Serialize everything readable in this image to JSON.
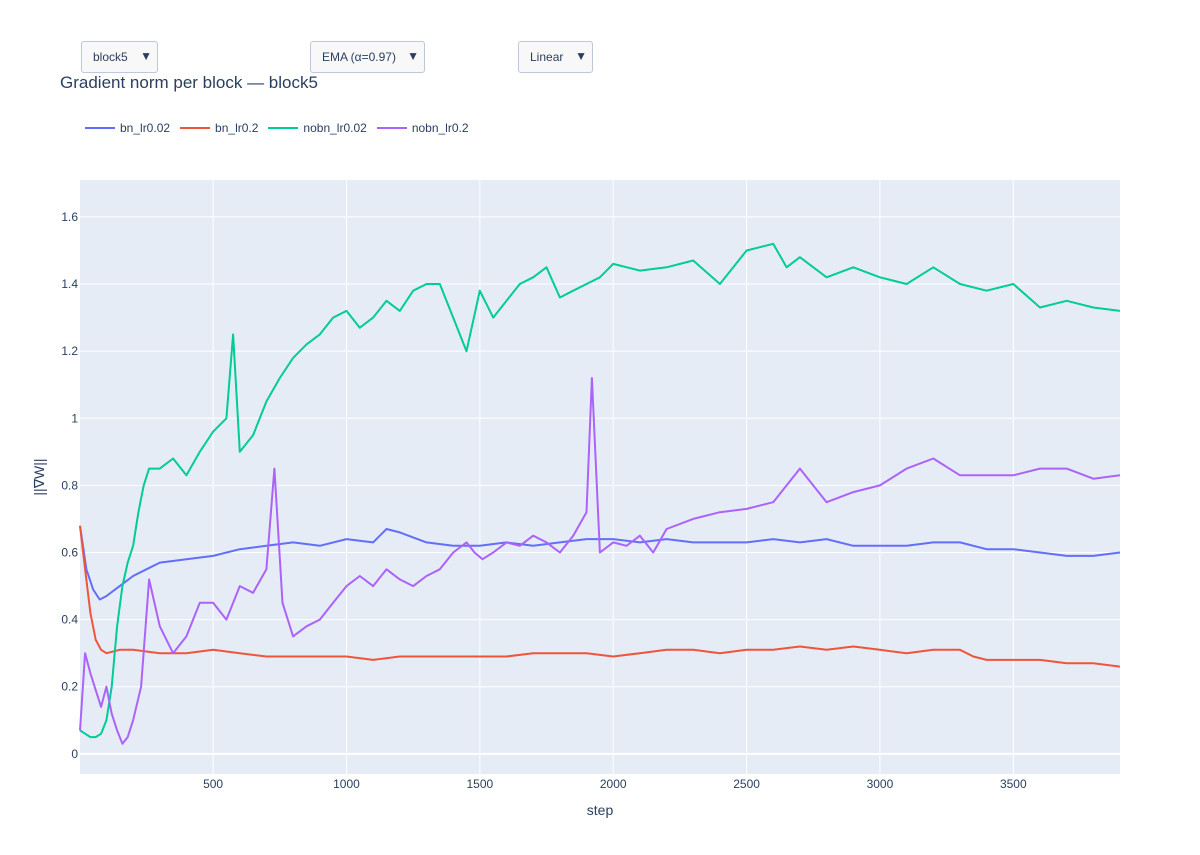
{
  "controls": {
    "block_dropdown": {
      "selected": "block5"
    },
    "smoothing_dropdown": {
      "selected": "EMA (α=0.97)"
    },
    "scale_dropdown": {
      "selected": "Linear"
    },
    "arrow_glyph": "▼"
  },
  "chart_data": {
    "type": "line",
    "title": "Gradient norm per block — block5",
    "xlabel": "step",
    "ylabel": "||∇W||",
    "xlim": [
      1,
      3900
    ],
    "ylim": [
      -0.06,
      1.71
    ],
    "x_ticks": [
      500,
      1000,
      1500,
      2000,
      2500,
      3000,
      3500
    ],
    "x_tick_labels": [
      "500",
      "1000",
      "1500",
      "2000",
      "2500",
      "3000",
      "3500"
    ],
    "y_ticks": [
      0,
      0.2,
      0.4,
      0.6,
      0.8,
      1.0,
      1.2,
      1.4,
      1.6
    ],
    "y_tick_labels": [
      "0",
      "0.2",
      "0.4",
      "0.6",
      "0.8",
      "1",
      "1.2",
      "1.4",
      "1.6"
    ],
    "grid": true,
    "legend_placement": "top-left, horizontal",
    "plot_background": "#e5ecf6",
    "series": [
      {
        "name": "bn_lr0.02",
        "color": "#636efa",
        "x": [
          1,
          25,
          50,
          75,
          100,
          150,
          200,
          250,
          300,
          400,
          500,
          600,
          700,
          800,
          900,
          1000,
          1100,
          1150,
          1200,
          1300,
          1400,
          1500,
          1600,
          1700,
          1800,
          1900,
          2000,
          2100,
          2200,
          2300,
          2400,
          2500,
          2600,
          2700,
          2800,
          2900,
          3000,
          3100,
          3200,
          3300,
          3400,
          3500,
          3600,
          3700,
          3800,
          3900
        ],
        "y": [
          0.68,
          0.55,
          0.49,
          0.46,
          0.47,
          0.5,
          0.53,
          0.55,
          0.57,
          0.58,
          0.59,
          0.61,
          0.62,
          0.63,
          0.62,
          0.64,
          0.63,
          0.67,
          0.66,
          0.63,
          0.62,
          0.62,
          0.63,
          0.62,
          0.63,
          0.64,
          0.64,
          0.63,
          0.64,
          0.63,
          0.63,
          0.63,
          0.64,
          0.63,
          0.64,
          0.62,
          0.62,
          0.62,
          0.63,
          0.63,
          0.61,
          0.61,
          0.6,
          0.59,
          0.59,
          0.6
        ]
      },
      {
        "name": "bn_lr0.2",
        "color": "#ef553b",
        "x": [
          1,
          20,
          40,
          60,
          80,
          100,
          150,
          200,
          300,
          400,
          500,
          600,
          700,
          800,
          900,
          1000,
          1100,
          1200,
          1300,
          1400,
          1500,
          1600,
          1700,
          1800,
          1900,
          2000,
          2100,
          2200,
          2300,
          2400,
          2500,
          2600,
          2700,
          2800,
          2900,
          3000,
          3100,
          3200,
          3300,
          3350,
          3400,
          3500,
          3600,
          3700,
          3800,
          3900
        ],
        "y": [
          0.68,
          0.55,
          0.42,
          0.34,
          0.31,
          0.3,
          0.31,
          0.31,
          0.3,
          0.3,
          0.31,
          0.3,
          0.29,
          0.29,
          0.29,
          0.29,
          0.28,
          0.29,
          0.29,
          0.29,
          0.29,
          0.29,
          0.3,
          0.3,
          0.3,
          0.29,
          0.3,
          0.31,
          0.31,
          0.3,
          0.31,
          0.31,
          0.32,
          0.31,
          0.32,
          0.31,
          0.3,
          0.31,
          0.31,
          0.29,
          0.28,
          0.28,
          0.28,
          0.27,
          0.27,
          0.26
        ]
      },
      {
        "name": "nobn_lr0.02",
        "color": "#00cc96",
        "x": [
          1,
          20,
          40,
          60,
          80,
          100,
          120,
          140,
          160,
          180,
          200,
          220,
          240,
          260,
          300,
          350,
          400,
          450,
          500,
          550,
          575,
          600,
          650,
          700,
          750,
          800,
          850,
          900,
          950,
          1000,
          1050,
          1100,
          1150,
          1200,
          1250,
          1300,
          1350,
          1400,
          1450,
          1500,
          1550,
          1600,
          1650,
          1700,
          1750,
          1800,
          1850,
          1900,
          1950,
          2000,
          2100,
          2200,
          2300,
          2400,
          2500,
          2600,
          2650,
          2700,
          2800,
          2900,
          3000,
          3100,
          3200,
          3300,
          3400,
          3500,
          3600,
          3700,
          3800,
          3900
        ],
        "y": [
          0.07,
          0.06,
          0.05,
          0.05,
          0.06,
          0.1,
          0.2,
          0.38,
          0.5,
          0.57,
          0.62,
          0.72,
          0.8,
          0.85,
          0.85,
          0.88,
          0.83,
          0.9,
          0.96,
          1.0,
          1.25,
          0.9,
          0.95,
          1.05,
          1.12,
          1.18,
          1.22,
          1.25,
          1.3,
          1.32,
          1.27,
          1.3,
          1.35,
          1.32,
          1.38,
          1.4,
          1.4,
          1.3,
          1.2,
          1.38,
          1.3,
          1.35,
          1.4,
          1.42,
          1.45,
          1.36,
          1.38,
          1.4,
          1.42,
          1.46,
          1.44,
          1.45,
          1.47,
          1.4,
          1.5,
          1.52,
          1.45,
          1.48,
          1.42,
          1.45,
          1.42,
          1.4,
          1.45,
          1.4,
          1.38,
          1.4,
          1.33,
          1.35,
          1.33,
          1.32
        ]
      },
      {
        "name": "nobn_lr0.2",
        "color": "#ab63fa",
        "x": [
          1,
          20,
          40,
          60,
          80,
          100,
          120,
          140,
          160,
          180,
          200,
          230,
          260,
          300,
          350,
          400,
          450,
          500,
          550,
          600,
          650,
          700,
          730,
          760,
          800,
          850,
          900,
          950,
          1000,
          1050,
          1100,
          1150,
          1200,
          1250,
          1300,
          1350,
          1400,
          1450,
          1480,
          1510,
          1550,
          1600,
          1650,
          1700,
          1750,
          1800,
          1850,
          1900,
          1920,
          1950,
          2000,
          2050,
          2100,
          2150,
          2200,
          2300,
          2400,
          2500,
          2600,
          2700,
          2800,
          2900,
          3000,
          3100,
          3200,
          3300,
          3400,
          3500,
          3600,
          3700,
          3800,
          3900
        ],
        "y": [
          0.07,
          0.3,
          0.24,
          0.19,
          0.14,
          0.2,
          0.12,
          0.07,
          0.03,
          0.05,
          0.1,
          0.2,
          0.52,
          0.38,
          0.3,
          0.35,
          0.45,
          0.45,
          0.4,
          0.5,
          0.48,
          0.55,
          0.85,
          0.45,
          0.35,
          0.38,
          0.4,
          0.45,
          0.5,
          0.53,
          0.5,
          0.55,
          0.52,
          0.5,
          0.53,
          0.55,
          0.6,
          0.63,
          0.6,
          0.58,
          0.6,
          0.63,
          0.62,
          0.65,
          0.63,
          0.6,
          0.65,
          0.72,
          1.12,
          0.6,
          0.63,
          0.62,
          0.65,
          0.6,
          0.67,
          0.7,
          0.72,
          0.73,
          0.75,
          0.85,
          0.75,
          0.78,
          0.8,
          0.85,
          0.88,
          0.83,
          0.83,
          0.83,
          0.85,
          0.85,
          0.82,
          0.83
        ]
      }
    ]
  }
}
